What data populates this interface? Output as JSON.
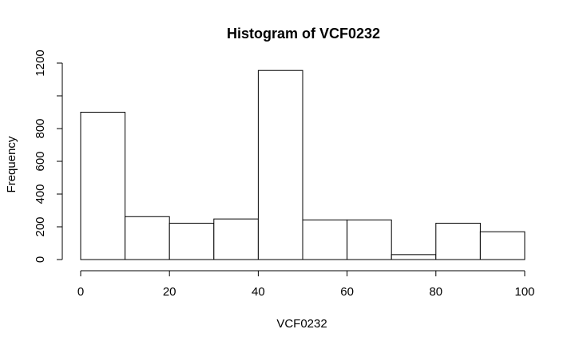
{
  "chart_data": {
    "type": "bar",
    "title": "Histogram of VCF0232",
    "xlabel": "VCF0232",
    "ylabel": "Frequency",
    "bin_edges": [
      0,
      10,
      20,
      30,
      40,
      50,
      60,
      70,
      80,
      90,
      100
    ],
    "values": [
      900,
      262,
      222,
      248,
      1155,
      242,
      242,
      30,
      222,
      170
    ],
    "xlim": [
      0,
      100
    ],
    "ylim": [
      0,
      1200
    ],
    "x_ticks": [
      0,
      20,
      40,
      60,
      80,
      100
    ],
    "y_ticks": [
      0,
      200,
      400,
      600,
      800,
      1200
    ],
    "grid": false,
    "colors": {
      "bar_fill": "#ffffff",
      "bar_stroke": "#000000"
    }
  }
}
